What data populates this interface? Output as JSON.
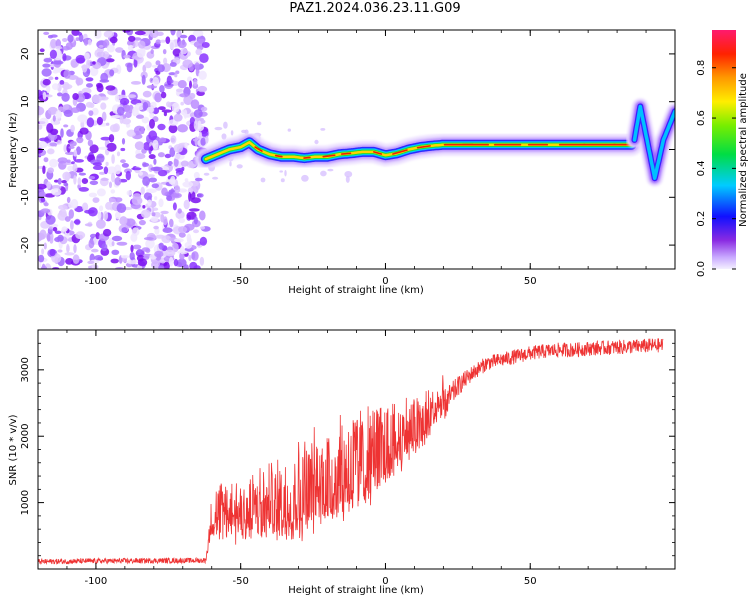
{
  "title": "PAZ1.2024.036.23.11.G09",
  "chart_data": [
    {
      "type": "heatmap",
      "xlabel": "Height of straight line (km)",
      "ylabel": "Frequency (Hz)",
      "xlim": [
        -120,
        100
      ],
      "ylim": [
        -25,
        25
      ],
      "xticks": [
        -100,
        -50,
        0,
        50
      ],
      "yticks": [
        -20,
        -10,
        0,
        10,
        20
      ],
      "colorbar": {
        "label": "Normalized spectral amplitude",
        "range": [
          0,
          0.95
        ],
        "ticks": [
          0.0,
          0.2,
          0.4,
          0.6,
          0.8
        ]
      },
      "noise_region_x": [
        -120,
        -62
      ],
      "signal_ridge": {
        "x": [
          -62,
          -58,
          -54,
          -50,
          -47,
          -44,
          -40,
          -36,
          -32,
          -28,
          -24,
          -20,
          -16,
          -12,
          -8,
          -4,
          0,
          4,
          8,
          12,
          16,
          20,
          30,
          40,
          50,
          60,
          70,
          80,
          85
        ],
        "y": [
          -2,
          -1,
          0,
          0.5,
          1.5,
          0,
          -1,
          -1.5,
          -1.5,
          -1.8,
          -1.5,
          -1.5,
          -1,
          -0.8,
          -0.5,
          -0.5,
          -1.2,
          -0.8,
          0,
          0.5,
          0.8,
          1,
          1,
          1,
          1,
          1,
          1,
          1,
          1
        ]
      },
      "tail_branch": {
        "x": [
          86,
          88,
          90,
          93,
          96,
          100
        ],
        "y": [
          2,
          9,
          3,
          -6,
          2,
          8
        ]
      }
    },
    {
      "type": "line",
      "xlabel": "Height of straight line (km)",
      "ylabel": "SNR (10 * v/v)",
      "xlim": [
        -120,
        100
      ],
      "ylim": [
        0,
        3600
      ],
      "xticks": [
        -100,
        -50,
        0,
        50
      ],
      "yticks": [
        1000,
        2000,
        3000
      ],
      "series": [
        {
          "color": "#ee3333",
          "envelope_x": [
            -120,
            -100,
            -80,
            -62,
            -60,
            -55,
            -50,
            -45,
            -40,
            -35,
            -30,
            -25,
            -20,
            -15,
            -10,
            -5,
            0,
            5,
            10,
            15,
            20,
            25,
            30,
            35,
            40,
            45,
            50,
            55,
            60,
            65,
            70,
            75,
            80,
            85,
            90,
            96
          ],
          "envelope_mean": [
            110,
            120,
            125,
            130,
            600,
            700,
            650,
            700,
            650,
            750,
            850,
            900,
            1000,
            1150,
            1300,
            1400,
            1550,
            1700,
            1900,
            2150,
            2450,
            2750,
            2950,
            3100,
            3150,
            3200,
            3250,
            3280,
            3300,
            3300,
            3320,
            3330,
            3340,
            3350,
            3360,
            3370
          ],
          "envelope_amp": [
            40,
            40,
            40,
            40,
            350,
            450,
            450,
            500,
            550,
            600,
            650,
            700,
            750,
            750,
            700,
            650,
            600,
            550,
            450,
            350,
            250,
            150,
            120,
            110,
            110,
            110,
            110,
            110,
            110,
            110,
            110,
            110,
            110,
            110,
            110,
            110
          ]
        }
      ]
    }
  ]
}
